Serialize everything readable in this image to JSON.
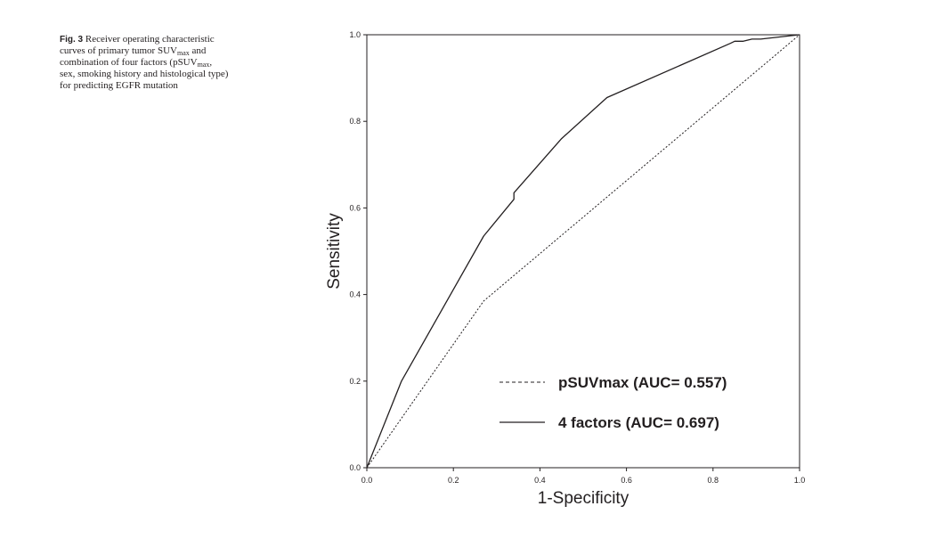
{
  "caption": {
    "label": "Fig. 3",
    "part1": "Receiver operating characteristic curves of primary tumor SUV",
    "sub1": "max",
    "part2": " and combination of four factors (pSUV",
    "sub2": "max",
    "part3": ", sex, smoking history and histological type) for predicting EGFR mutation"
  },
  "chart_data": {
    "type": "line",
    "xlabel": "1-Specificity",
    "ylabel": "Sensitivity",
    "xlim": [
      0,
      1
    ],
    "ylim": [
      0,
      1
    ],
    "x_ticks": [
      "0.0",
      "0.2",
      "0.4",
      "0.6",
      "0.8",
      "1.0"
    ],
    "y_ticks": [
      "0.0",
      "0.2",
      "0.4",
      "0.6",
      "0.8",
      "1.0"
    ],
    "grid": false,
    "legend_position": "bottom-right",
    "series": [
      {
        "name": "pSUVmax (AUC= 0.557)",
        "style": "dashed",
        "x": [
          0,
          0.27,
          1
        ],
        "y": [
          0,
          0.385,
          1
        ]
      },
      {
        "name": "4 factors (AUC= 0.697)",
        "style": "solid",
        "x": [
          0,
          0.08,
          0.27,
          0.34,
          0.34,
          0.45,
          0.555,
          0.84,
          0.85,
          0.87,
          0.89,
          0.91,
          1
        ],
        "y": [
          0,
          0.2,
          0.535,
          0.62,
          0.635,
          0.76,
          0.855,
          0.98,
          0.985,
          0.985,
          0.99,
          0.99,
          1
        ]
      }
    ],
    "colors": {
      "line": "#231f20"
    }
  }
}
